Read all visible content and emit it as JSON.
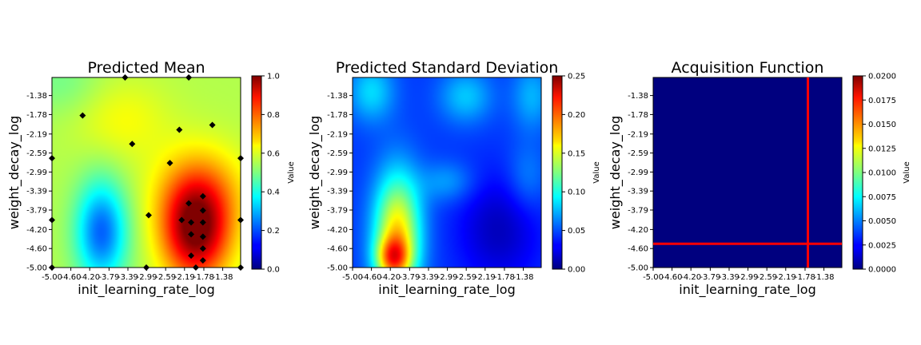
{
  "chart_data": [
    {
      "type": "heatmap",
      "title": "Predicted Mean",
      "xlabel": "init_learning_rate_log",
      "ylabel": "weight_decay_log",
      "x_tick_labels": [
        "-5.00",
        "-4.60",
        "-4.20",
        "-3.79",
        "-3.39",
        "-2.99",
        "-2.59",
        "-2.19",
        "-1.78",
        "-1.38"
      ],
      "y_tick_labels": [
        "-1.38",
        "-1.78",
        "-2.19",
        "-2.59",
        "-2.99",
        "-3.39",
        "-3.79",
        "-4.20",
        "-4.60",
        "-5.00"
      ],
      "xlim": [
        -5.0,
        -1.0
      ],
      "ylim": [
        -5.0,
        -1.0
      ],
      "colormap": "jet",
      "colorbar": {
        "label": "Value",
        "range": [
          0.0,
          1.0
        ],
        "tick_values": [
          0.0,
          0.2,
          0.4,
          0.6,
          0.8,
          1.0
        ],
        "tick_labels": [
          "0.0",
          "0.2",
          "0.4",
          "0.6",
          "0.8",
          "1.0"
        ]
      },
      "observed_points": [
        [
          -3.45,
          -1.0
        ],
        [
          -2.1,
          -1.0
        ],
        [
          -4.35,
          -1.8
        ],
        [
          -2.3,
          -2.1
        ],
        [
          -1.6,
          -2.0
        ],
        [
          -3.3,
          -2.4
        ],
        [
          -2.5,
          -2.8
        ],
        [
          -5.0,
          -2.7
        ],
        [
          -1.0,
          -2.7
        ],
        [
          -1.8,
          -3.5
        ],
        [
          -2.1,
          -3.65
        ],
        [
          -1.8,
          -3.8
        ],
        [
          -2.95,
          -3.9
        ],
        [
          -2.25,
          -4.0
        ],
        [
          -2.05,
          -4.05
        ],
        [
          -1.8,
          -4.05
        ],
        [
          -2.05,
          -4.3
        ],
        [
          -1.8,
          -4.35
        ],
        [
          -1.8,
          -4.6
        ],
        [
          -2.05,
          -4.75
        ],
        [
          -1.8,
          -4.85
        ],
        [
          -5.0,
          -4.0
        ],
        [
          -1.0,
          -4.0
        ],
        [
          -5.0,
          -5.0
        ],
        [
          -3.0,
          -5.0
        ],
        [
          -1.95,
          -5.0
        ],
        [
          -1.0,
          -5.0
        ]
      ]
    },
    {
      "type": "heatmap",
      "title": "Predicted Standard Deviation",
      "xlabel": "init_learning_rate_log",
      "ylabel": "weight_decay_log",
      "x_tick_labels": [
        "-5.00",
        "-4.60",
        "-4.20",
        "-3.79",
        "-3.39",
        "-2.99",
        "-2.59",
        "-2.19",
        "-1.78",
        "-1.38"
      ],
      "y_tick_labels": [
        "-1.38",
        "-1.78",
        "-2.19",
        "-2.59",
        "-2.99",
        "-3.39",
        "-3.79",
        "-4.20",
        "-4.60",
        "-5.00"
      ],
      "xlim": [
        -5.0,
        -1.0
      ],
      "ylim": [
        -5.0,
        -1.0
      ],
      "colormap": "jet",
      "colorbar": {
        "label": "Value",
        "range": [
          0.0,
          0.25
        ],
        "tick_values": [
          0.0,
          0.05,
          0.1,
          0.15,
          0.2,
          0.25
        ],
        "tick_labels": [
          "0.00",
          "0.05",
          "0.10",
          "0.15",
          "0.20",
          "0.25"
        ]
      }
    },
    {
      "type": "heatmap",
      "title": "Acquisition Function",
      "xlabel": "init_learning_rate_log",
      "ylabel": "weight_decay_log",
      "x_tick_labels": [
        "-5.00",
        "-4.60",
        "-4.20",
        "-3.79",
        "-3.39",
        "-2.99",
        "-2.59",
        "-2.19",
        "-1.78",
        "-1.38"
      ],
      "y_tick_labels": [
        "-1.38",
        "-1.78",
        "-2.19",
        "-2.59",
        "-2.99",
        "-3.39",
        "-3.79",
        "-4.20",
        "-4.60",
        "-5.00"
      ],
      "xlim": [
        -5.0,
        -1.0
      ],
      "ylim": [
        -5.0,
        -1.0
      ],
      "colormap": "jet",
      "colorbar": {
        "label": "Value",
        "range": [
          0.0,
          0.02
        ],
        "tick_values": [
          0.0,
          0.0025,
          0.005,
          0.0075,
          0.01,
          0.0125,
          0.015,
          0.0175,
          0.02
        ],
        "tick_labels": [
          "0.0000",
          "0.0025",
          "0.0050",
          "0.0075",
          "0.0100",
          "0.0125",
          "0.0150",
          "0.0175",
          "0.0200"
        ]
      },
      "selected_point": {
        "x": -1.72,
        "y": -4.5,
        "line_color": "#ff0000"
      }
    }
  ]
}
